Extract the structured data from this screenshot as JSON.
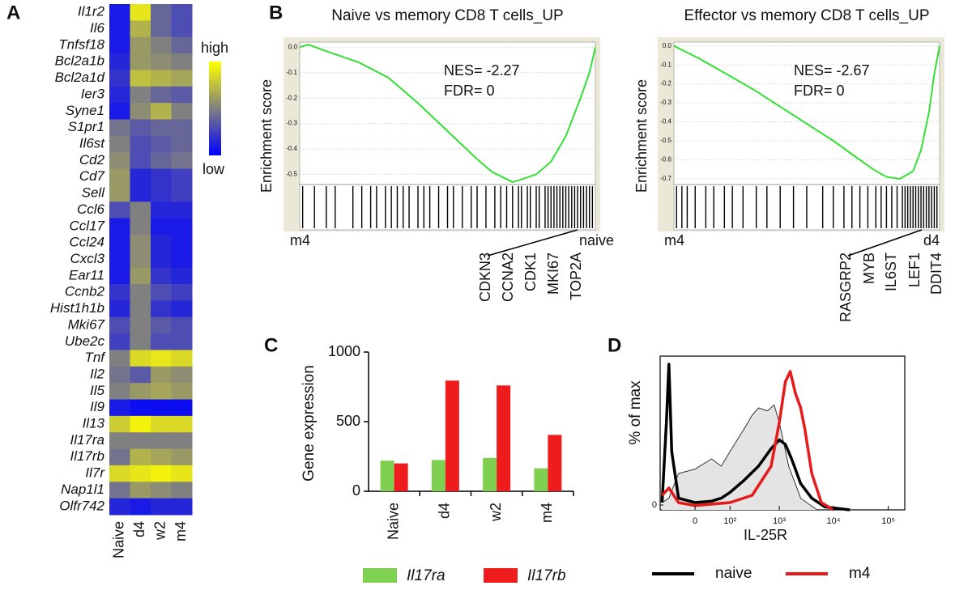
{
  "chart_data": [
    {
      "type": "heatmap",
      "panel": "A",
      "rows": [
        "Il1r2",
        "Il6",
        "Tnfsf18",
        "Bcl2a1b",
        "Bcl2a1d",
        "Ier3",
        "Syne1",
        "S1pr1",
        "Il6st",
        "Cd2",
        "Cd7",
        "Sell",
        "Ccl6",
        "Ccl17",
        "Ccl24",
        "Cxcl3",
        "Ear11",
        "Ccnb2",
        "Hist1h1b",
        "Mki67",
        "Ube2c",
        "Tnf",
        "Il2",
        "Il5",
        "Il9",
        "Il13",
        "Il17ra",
        "Il17rb",
        "Il7r",
        "Nap1l1",
        "Olfr742"
      ],
      "columns": [
        "Naive",
        "d4",
        "w2",
        "m4"
      ],
      "values": [
        [
          0.1,
          0.9,
          0.4,
          0.3
        ],
        [
          0.1,
          0.7,
          0.4,
          0.3
        ],
        [
          0.1,
          0.6,
          0.5,
          0.4
        ],
        [
          0.15,
          0.6,
          0.55,
          0.5
        ],
        [
          0.2,
          0.75,
          0.7,
          0.65
        ],
        [
          0.15,
          0.5,
          0.4,
          0.35
        ],
        [
          0.1,
          0.55,
          0.7,
          0.5
        ],
        [
          0.45,
          0.35,
          0.4,
          0.4
        ],
        [
          0.5,
          0.3,
          0.35,
          0.4
        ],
        [
          0.55,
          0.3,
          0.4,
          0.45
        ],
        [
          0.6,
          0.15,
          0.2,
          0.25
        ],
        [
          0.6,
          0.15,
          0.2,
          0.25
        ],
        [
          0.3,
          0.5,
          0.15,
          0.15
        ],
        [
          0.1,
          0.5,
          0.1,
          0.1
        ],
        [
          0.1,
          0.55,
          0.15,
          0.1
        ],
        [
          0.1,
          0.55,
          0.15,
          0.1
        ],
        [
          0.1,
          0.6,
          0.2,
          0.15
        ],
        [
          0.2,
          0.5,
          0.3,
          0.25
        ],
        [
          0.15,
          0.5,
          0.2,
          0.15
        ],
        [
          0.3,
          0.5,
          0.35,
          0.3
        ],
        [
          0.25,
          0.5,
          0.3,
          0.3
        ],
        [
          0.5,
          0.85,
          0.9,
          0.85
        ],
        [
          0.45,
          0.35,
          0.6,
          0.55
        ],
        [
          0.5,
          0.6,
          0.65,
          0.6
        ],
        [
          0.1,
          0.05,
          0.05,
          0.05
        ],
        [
          0.8,
          0.95,
          0.85,
          0.85
        ],
        [
          0.5,
          0.5,
          0.5,
          0.5
        ],
        [
          0.45,
          0.7,
          0.65,
          0.6
        ],
        [
          0.85,
          0.9,
          0.95,
          0.9
        ],
        [
          0.45,
          0.6,
          0.55,
          0.5
        ],
        [
          0.15,
          0.1,
          0.15,
          0.15
        ]
      ],
      "zlim": [
        0,
        1
      ],
      "colormap": [
        "#0000ff",
        "#808080",
        "#ffff00"
      ],
      "legend_high": "high",
      "legend_low": "low"
    },
    {
      "type": "line",
      "panel": "B",
      "title": "Naive vs memory CD8 T cells_UP",
      "ylabel": "Enrichment score",
      "annotations": [
        "NES= -2.27",
        "FDR= 0"
      ],
      "color": "#33e033",
      "x": [
        0,
        0.03,
        0.1,
        0.2,
        0.3,
        0.4,
        0.5,
        0.6,
        0.65,
        0.72,
        0.75,
        0.8,
        0.85,
        0.9,
        0.95,
        0.98,
        1.0
      ],
      "y": [
        0,
        0.01,
        -0.02,
        -0.06,
        -0.12,
        -0.22,
        -0.33,
        -0.44,
        -0.49,
        -0.53,
        -0.52,
        -0.5,
        -0.45,
        -0.35,
        -0.2,
        -0.1,
        0
      ],
      "xlim": [
        0,
        1
      ],
      "ylim": [
        -0.54,
        0.02
      ],
      "yticks": [
        {
          "value": 0,
          "label": "0.0"
        },
        -0.1,
        -0.2,
        -0.3,
        -0.4,
        -0.5
      ],
      "grid": true,
      "hits": [
        0.01,
        0.05,
        0.09,
        0.12,
        0.18,
        0.21,
        0.24,
        0.26,
        0.29,
        0.31,
        0.33,
        0.35,
        0.37,
        0.4,
        0.42,
        0.44,
        0.47,
        0.5,
        0.52,
        0.55,
        0.58,
        0.6,
        0.63,
        0.66,
        0.68,
        0.7,
        0.72,
        0.74,
        0.75,
        0.77,
        0.78,
        0.8,
        0.81,
        0.83,
        0.84,
        0.85,
        0.86,
        0.87,
        0.88,
        0.89,
        0.9,
        0.91,
        0.92,
        0.93,
        0.94,
        0.95,
        0.96,
        0.97,
        0.98,
        0.99
      ],
      "left_label": {
        "text": "m4",
        "color": "#e31a1a"
      },
      "right_label": {
        "text": "naive",
        "color": "#1f72c8"
      },
      "genes": [
        "CDKN3",
        "CCNA2",
        "CDK1",
        "MKI67",
        "TOP2A"
      ]
    },
    {
      "type": "line",
      "title": "Effector vs memory CD8 T cells_UP",
      "ylabel": "Enrichment score",
      "annotations": [
        "NES= -2.67",
        "FDR= 0"
      ],
      "color": "#33e033",
      "x": [
        0,
        0.1,
        0.2,
        0.3,
        0.4,
        0.5,
        0.6,
        0.7,
        0.75,
        0.8,
        0.85,
        0.9,
        0.93,
        0.96,
        0.98,
        1.0
      ],
      "y": [
        0,
        -0.07,
        -0.15,
        -0.23,
        -0.32,
        -0.41,
        -0.5,
        -0.6,
        -0.65,
        -0.69,
        -0.7,
        -0.66,
        -0.55,
        -0.35,
        -0.15,
        0
      ],
      "xlim": [
        0,
        1
      ],
      "ylim": [
        -0.73,
        0.02
      ],
      "yticks": [
        {
          "value": 0,
          "label": "0.0"
        },
        -0.1,
        -0.2,
        -0.3,
        -0.4,
        -0.5,
        -0.6,
        -0.7
      ],
      "grid": true,
      "hits": [
        0.01,
        0.03,
        0.05,
        0.08,
        0.12,
        0.15,
        0.19,
        0.22,
        0.26,
        0.31,
        0.35,
        0.4,
        0.45,
        0.5,
        0.56,
        0.6,
        0.64,
        0.67,
        0.7,
        0.73,
        0.76,
        0.78,
        0.8,
        0.82,
        0.84,
        0.86,
        0.87,
        0.88,
        0.89,
        0.9,
        0.91,
        0.92,
        0.93,
        0.94,
        0.95,
        0.96,
        0.97,
        0.98,
        0.99
      ],
      "left_label": {
        "text": "m4",
        "color": "#e31a1a"
      },
      "right_label": {
        "text": "d4",
        "color": "#3346c8"
      },
      "genes": [
        "RASGRP2",
        "MYB",
        "IL6ST",
        "LEF1",
        "DDIT4"
      ]
    },
    {
      "type": "bar",
      "panel": "C",
      "ylabel": "Gene expression",
      "categories": [
        "Naive",
        "d4",
        "w2",
        "m4"
      ],
      "series": [
        {
          "name": "Il17ra",
          "color": "#7fcf50",
          "values": [
            220,
            225,
            240,
            165
          ]
        },
        {
          "name": "Il17rb",
          "color": "#ee1c1c",
          "values": [
            200,
            795,
            760,
            405
          ]
        }
      ],
      "ylim": [
        0,
        1000
      ],
      "yticks": [
        0,
        500,
        1000
      ]
    },
    {
      "type": "density",
      "panel": "D",
      "xlabel": "IL-25R",
      "ylabel": "% of max",
      "xscale": "biexponential",
      "xlim": [
        -100,
        200000
      ],
      "xticks": [
        0,
        {
          "value": 100,
          "label": "10²"
        },
        {
          "value": 1000,
          "label": "10³"
        },
        {
          "value": 10000,
          "label": "10⁴"
        },
        {
          "value": 100000,
          "label": "10⁵"
        }
      ],
      "ylim": [
        0,
        100
      ],
      "yticks": [
        0
      ],
      "series": [
        {
          "color": "#333333",
          "fill": "#e4e4e4",
          "width": 1,
          "x": [
            -90,
            -60,
            -30,
            0,
            30,
            60,
            100,
            200,
            300,
            400,
            600,
            800,
            1000,
            1500,
            2500,
            5000
          ],
          "y": [
            5,
            8,
            25,
            28,
            35,
            30,
            40,
            55,
            65,
            70,
            68,
            72,
            60,
            30,
            8,
            0
          ]
        },
        {
          "name": "naive",
          "color": "#000000",
          "width": 3.5,
          "x": [
            -90,
            -70,
            -60,
            -50,
            -30,
            0,
            30,
            60,
            100,
            200,
            400,
            700,
            1000,
            1300,
            1700,
            2500,
            4000,
            7000,
            20000
          ],
          "y": [
            5,
            60,
            100,
            40,
            8,
            5,
            6,
            8,
            12,
            20,
            30,
            42,
            48,
            45,
            35,
            18,
            8,
            2,
            0
          ]
        },
        {
          "name": "m4",
          "color": "#e51b1b",
          "width": 3.5,
          "x": [
            -90,
            -60,
            -30,
            0,
            100,
            300,
            700,
            1000,
            1300,
            1600,
            2000,
            2500,
            3000,
            4000,
            6000,
            10000
          ],
          "y": [
            10,
            15,
            5,
            3,
            5,
            10,
            30,
            60,
            88,
            95,
            80,
            70,
            55,
            25,
            5,
            0
          ]
        }
      ]
    }
  ]
}
